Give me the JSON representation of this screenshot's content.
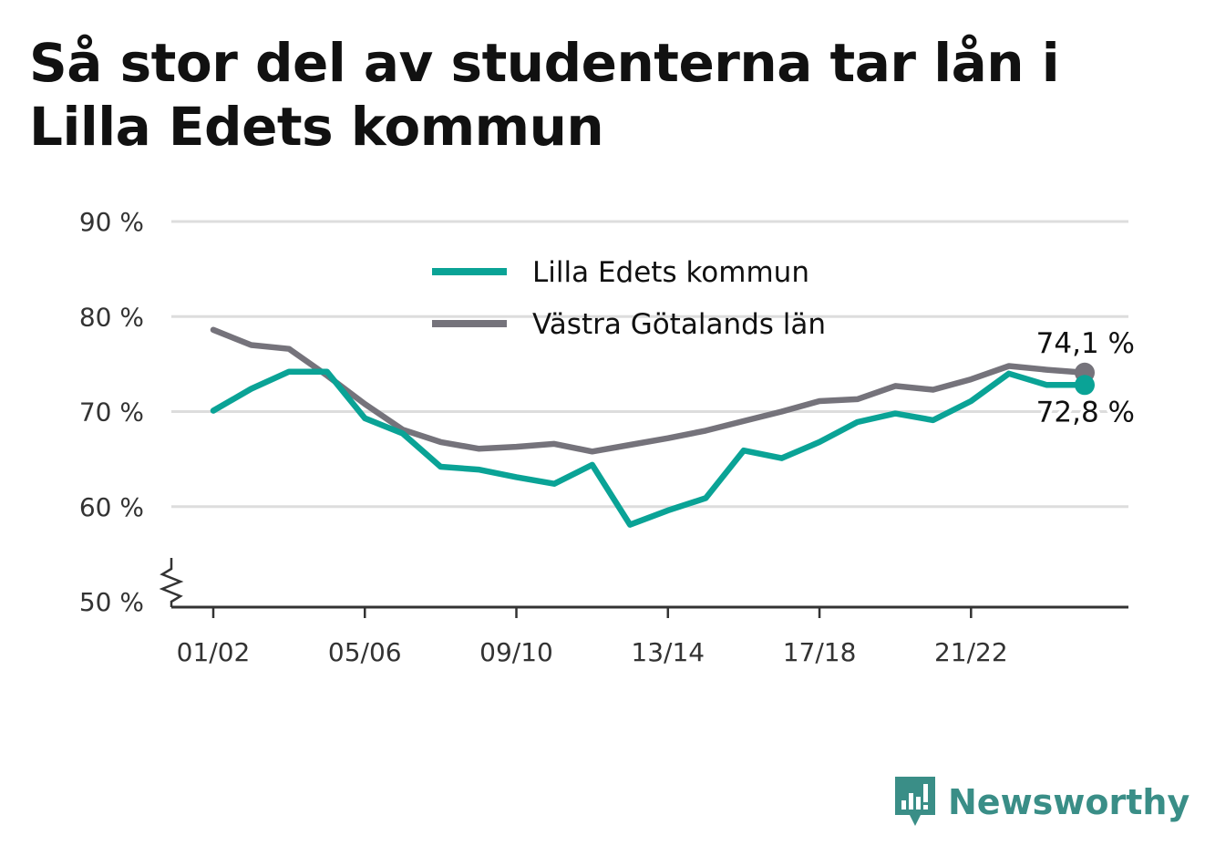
{
  "title": "Så stor del av studenterna tar lån i Lilla Edets kommun",
  "brand": {
    "name": "Newsworthy"
  },
  "colors": {
    "series1": "#0aa396",
    "series2": "#75737b",
    "grid": "#dddddd",
    "axis": "#333333",
    "brand": "#3a8e87"
  },
  "chart_data": {
    "type": "line",
    "x": [
      "01/02",
      "02/03",
      "03/04",
      "04/05",
      "05/06",
      "06/07",
      "07/08",
      "08/09",
      "09/10",
      "10/11",
      "11/12",
      "12/13",
      "13/14",
      "14/15",
      "15/16",
      "16/17",
      "17/18",
      "18/19",
      "19/20",
      "20/21",
      "21/22",
      "22/23",
      "23/24",
      "24/25"
    ],
    "x_tick_labels": [
      "01/02",
      "05/06",
      "09/10",
      "13/14",
      "17/18",
      "21/22"
    ],
    "y_tick_labels": [
      "90 %",
      "80 %",
      "70 %",
      "60 %",
      "50 %"
    ],
    "y_ticks": [
      90,
      80,
      70,
      60,
      50
    ],
    "ylim": [
      50,
      90
    ],
    "y_axis_break": true,
    "grid": true,
    "legend": "top-center",
    "series": [
      {
        "name": "Lilla Edets kommun",
        "color": "#0aa396",
        "values": [
          70.1,
          72.4,
          74.2,
          74.2,
          69.3,
          67.7,
          64.2,
          63.9,
          63.1,
          62.4,
          64.4,
          58.1,
          59.6,
          60.9,
          65.9,
          65.1,
          66.8,
          68.9,
          69.8,
          69.1,
          71.1,
          74.0,
          72.8,
          72.8
        ],
        "end_label": "72,8 %"
      },
      {
        "name": "Västra Götalands län",
        "color": "#75737b",
        "values": [
          78.6,
          77.0,
          76.6,
          73.8,
          70.8,
          68.1,
          66.8,
          66.1,
          66.3,
          66.6,
          65.8,
          66.5,
          67.2,
          68.0,
          69.0,
          70.0,
          71.1,
          71.3,
          72.7,
          72.3,
          73.4,
          74.8,
          74.4,
          74.1
        ],
        "end_label": "74,1 %"
      }
    ]
  }
}
